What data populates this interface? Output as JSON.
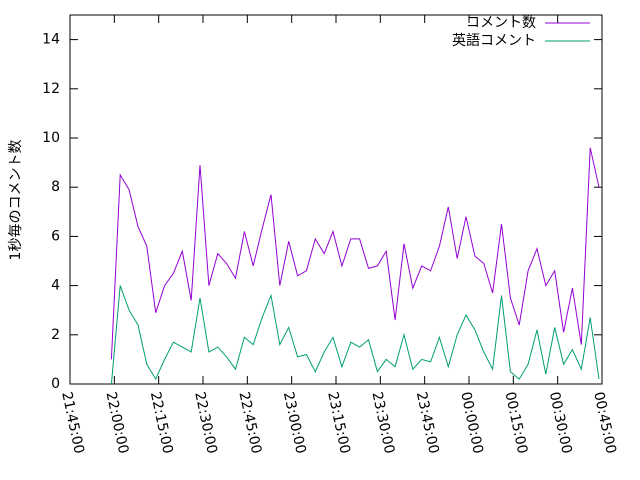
{
  "chart_data": {
    "type": "line",
    "y_label": "1秒毎のコメント数",
    "x": [
      "21:59:00",
      "22:02:00",
      "22:05:00",
      "22:08:00",
      "22:11:00",
      "22:14:00",
      "22:17:00",
      "22:20:00",
      "22:23:00",
      "22:26:00",
      "22:29:00",
      "22:32:00",
      "22:35:00",
      "22:38:00",
      "22:41:00",
      "22:44:00",
      "22:47:00",
      "22:50:00",
      "22:53:00",
      "22:56:00",
      "22:59:00",
      "23:02:00",
      "23:05:00",
      "23:08:00",
      "23:11:00",
      "23:14:00",
      "23:17:00",
      "23:20:00",
      "23:23:00",
      "23:26:00",
      "23:29:00",
      "23:32:00",
      "23:35:00",
      "23:38:00",
      "23:41:00",
      "23:44:00",
      "23:47:00",
      "23:50:00",
      "23:53:00",
      "23:56:00",
      "23:59:00",
      "00:02:00",
      "00:05:00",
      "00:08:00",
      "00:11:00",
      "00:14:00",
      "00:17:00",
      "00:20:00",
      "00:23:00",
      "00:26:00",
      "00:29:00",
      "00:32:00",
      "00:35:00",
      "00:38:00",
      "00:41:00",
      "00:44:00"
    ],
    "series": [
      {
        "name": "コメント数",
        "color": "#9400d3",
        "values": [
          1.0,
          8.5,
          7.9,
          6.4,
          5.6,
          2.9,
          4.0,
          4.5,
          5.4,
          3.4,
          8.9,
          4.0,
          5.3,
          4.9,
          4.3,
          6.2,
          4.8,
          6.3,
          7.7,
          4.0,
          5.8,
          4.4,
          4.6,
          5.9,
          5.3,
          6.2,
          4.8,
          5.9,
          5.9,
          4.7,
          4.8,
          5.4,
          2.6,
          5.7,
          3.9,
          4.8,
          4.6,
          5.6,
          7.2,
          5.1,
          6.8,
          5.2,
          4.9,
          3.7,
          6.5,
          3.5,
          2.4,
          4.6,
          5.5,
          4.0,
          4.6,
          2.1,
          3.9,
          1.6,
          9.6,
          8.0
        ]
      },
      {
        "name": "英語コメント",
        "color": "#009e73",
        "values": [
          0.0,
          4.0,
          3.0,
          2.4,
          0.8,
          0.2,
          1.0,
          1.7,
          1.5,
          1.3,
          3.5,
          1.3,
          1.5,
          1.1,
          0.6,
          1.9,
          1.6,
          2.7,
          3.6,
          1.6,
          2.3,
          1.1,
          1.2,
          0.5,
          1.3,
          1.9,
          0.7,
          1.7,
          1.5,
          1.8,
          0.5,
          1.0,
          0.7,
          2.0,
          0.6,
          1.0,
          0.9,
          1.9,
          0.7,
          2.0,
          2.8,
          2.2,
          1.3,
          0.6,
          3.6,
          0.5,
          0.2,
          0.8,
          2.2,
          0.4,
          2.3,
          0.8,
          1.4,
          0.6,
          2.7,
          0.2
        ]
      }
    ],
    "xlim": [
      "21:45:00",
      "00:45:00"
    ],
    "xticks": [
      "21:45:00",
      "22:00:00",
      "22:15:00",
      "22:30:00",
      "22:45:00",
      "23:00:00",
      "23:15:00",
      "23:30:00",
      "23:45:00",
      "00:00:00",
      "00:15:00",
      "00:30:00",
      "00:45:00"
    ],
    "ylim": [
      0,
      15
    ],
    "yticks": [
      0,
      2,
      4,
      6,
      8,
      10,
      12,
      14
    ],
    "legend": "top-right"
  }
}
